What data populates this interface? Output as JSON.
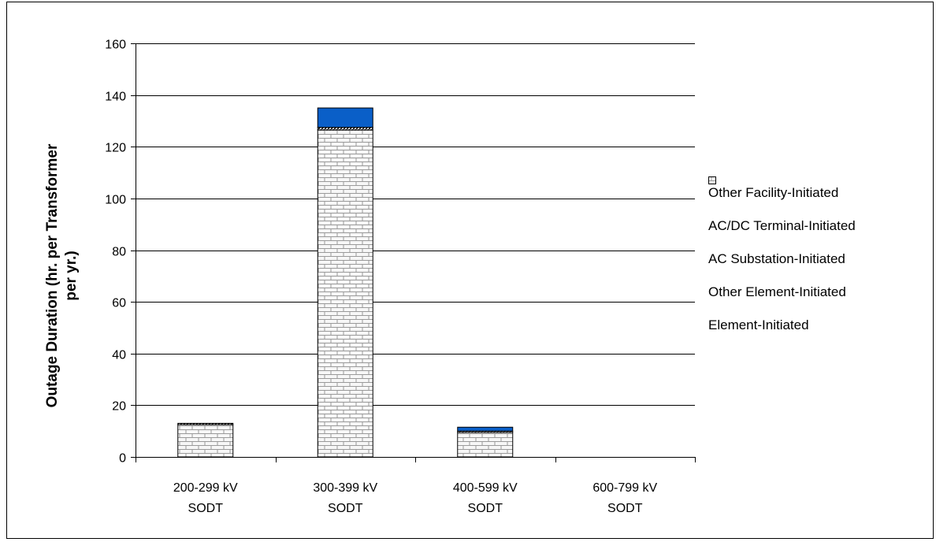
{
  "chart_data": {
    "type": "bar",
    "stacked": true,
    "title": "",
    "xlabel": "",
    "ylabel": "Outage Duration (hr. per Transformer per yr.)",
    "ylabel_lines": [
      "Outage Duration (hr. per Transformer",
      "per yr.)"
    ],
    "ylim": [
      0,
      160
    ],
    "yticks": [
      0,
      20,
      40,
      60,
      80,
      100,
      120,
      140,
      160
    ],
    "grid": true,
    "legend_position": "right",
    "categories": [
      [
        "200-299 kV",
        "SODT"
      ],
      [
        "300-399 kV",
        "SODT"
      ],
      [
        "400-599 kV",
        "SODT"
      ],
      [
        "600-799 kV",
        "SODT"
      ]
    ],
    "series": [
      {
        "name": "Element-Initiated",
        "values": [
          12.5,
          126.5,
          9.5,
          0
        ],
        "color": "#ffffff",
        "pattern": "brick"
      },
      {
        "name": "Other Element-Initiated",
        "values": [
          0.5,
          1.0,
          0.5,
          0
        ],
        "color": "#000000",
        "pattern": "diagonal"
      },
      {
        "name": "AC Substation-Initiated",
        "values": [
          0,
          7.5,
          1.5,
          0
        ],
        "color": "#0a5fc8",
        "pattern": "solid"
      },
      {
        "name": "AC/DC Terminal-Initiated",
        "values": [
          0,
          0,
          0,
          0
        ],
        "color": "#ffff99",
        "pattern": "solid"
      },
      {
        "name": "Other Facility-Initiated",
        "values": [
          0,
          0,
          0,
          0
        ],
        "color": "#c9d2f0",
        "pattern": "dots"
      }
    ],
    "legend_order": [
      "Other Facility-Initiated",
      "AC/DC Terminal-Initiated",
      "AC Substation-Initiated",
      "Other Element-Initiated",
      "Element-Initiated"
    ]
  }
}
